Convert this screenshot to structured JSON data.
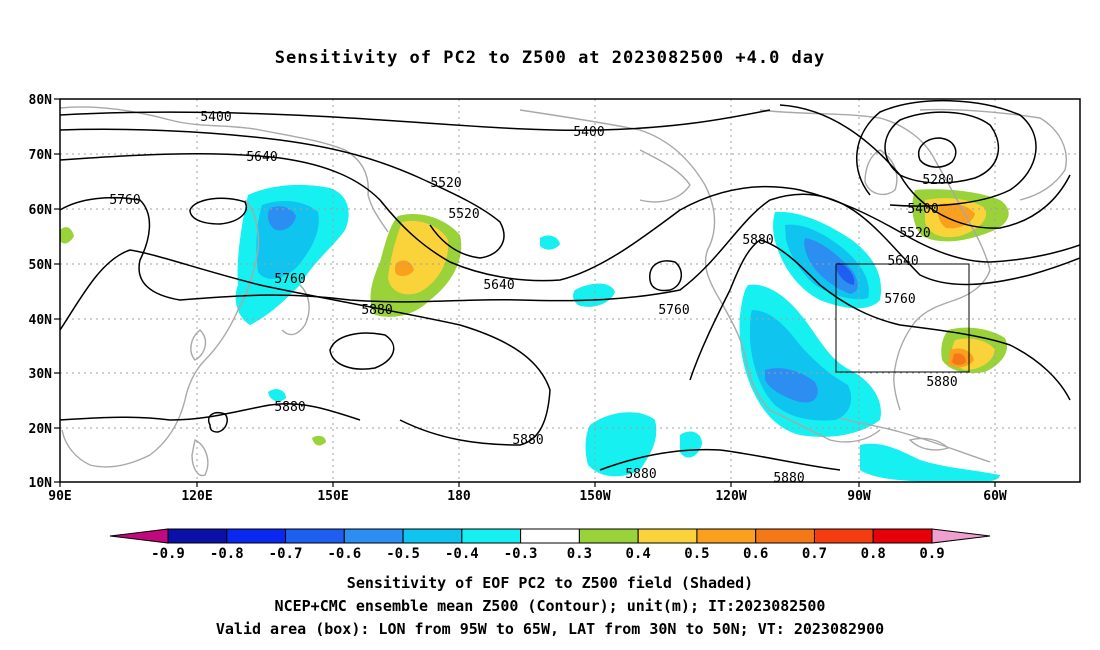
{
  "title": "Sensitivity of PC2 to Z500 at 2023082500 +4.0 day",
  "lat_labels": [
    "80N",
    "70N",
    "60N",
    "50N",
    "40N",
    "30N",
    "20N",
    "10N"
  ],
  "lon_labels": [
    "90E",
    "120E",
    "150E",
    "180",
    "150W",
    "120W",
    "90W",
    "60W"
  ],
  "contour_labels": [
    "5400",
    "5400",
    "5640",
    "5520",
    "5520",
    "5760",
    "5760",
    "5880",
    "5640",
    "5760",
    "5880",
    "5880",
    "5880",
    "5280",
    "5400",
    "5520",
    "5640",
    "5760",
    "5880",
    "5880",
    "5880"
  ],
  "colorbar": {
    "ticks": [
      "-0.9",
      "-0.8",
      "-0.7",
      "-0.6",
      "-0.5",
      "-0.4",
      "-0.3",
      "0.3",
      "0.4",
      "0.5",
      "0.6",
      "0.7",
      "0.8",
      "0.9"
    ],
    "colors": [
      "#c0087f",
      "#0a10a8",
      "#0a28f0",
      "#1e5ef0",
      "#2c8ef0",
      "#10c4f0",
      "#16f0f0",
      "#ffffff",
      "#9ad23a",
      "#fad23a",
      "#f9a01e",
      "#f57818",
      "#f53c10",
      "#e6000a",
      "#f0a0d0"
    ]
  },
  "box": {
    "lon_from": "95W",
    "lon_to": "65W",
    "lat_from": "30N",
    "lat_to": "50N"
  },
  "footer": {
    "line1": "Sensitivity of EOF PC2 to Z500 field (Shaded)",
    "line2": "NCEP+CMC ensemble mean Z500 (Contour); unit(m); IT:2023082500",
    "line3": "Valid area (box): LON from 95W to 65W, LAT from 30N to 50N; VT: 2023082900"
  }
}
